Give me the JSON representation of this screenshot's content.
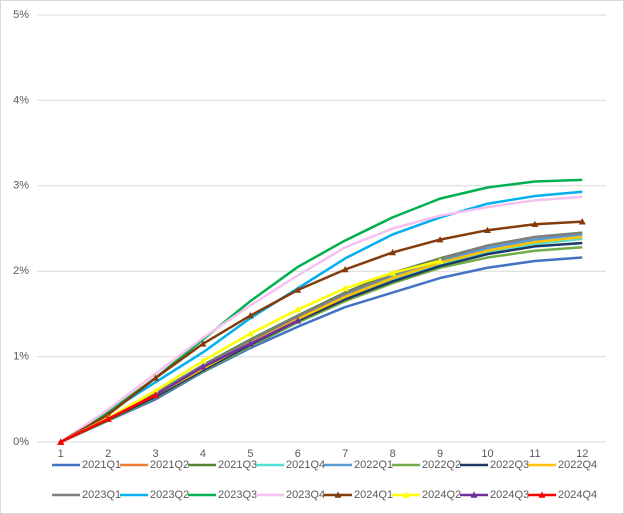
{
  "chart_data": {
    "type": "line",
    "categories": [
      "1",
      "2",
      "3",
      "4",
      "5",
      "6",
      "7",
      "8",
      "9",
      "10",
      "11",
      "12"
    ],
    "ylim": [
      0,
      5
    ],
    "yticks": [
      {
        "value": 0,
        "label": "0%"
      },
      {
        "value": 1,
        "label": "1%"
      },
      {
        "value": 2,
        "label": "2%"
      },
      {
        "value": 3,
        "label": "3%"
      },
      {
        "value": 4,
        "label": "4%"
      },
      {
        "value": 5,
        "label": "5%"
      }
    ],
    "series": [
      {
        "name": "2021Q1",
        "color": "#4472c4",
        "values": [
          0,
          0.25,
          0.5,
          0.82,
          1.1,
          1.35,
          1.58,
          1.75,
          1.92,
          2.04,
          2.12,
          2.16
        ]
      },
      {
        "name": "2021Q2",
        "color": "#ed7d31",
        "values": [
          0,
          0.27,
          0.55,
          0.85,
          1.15,
          1.42,
          1.68,
          1.9,
          2.08,
          2.22,
          2.32,
          2.38
        ]
      },
      {
        "name": "2021Q3",
        "color": "#548235",
        "values": [
          0,
          0.28,
          0.57,
          0.9,
          1.2,
          1.48,
          1.75,
          1.98,
          2.15,
          2.3,
          2.4,
          2.45
        ]
      },
      {
        "name": "2021Q4",
        "color": "#4fe0d4",
        "values": [
          0,
          0.27,
          0.55,
          0.86,
          1.15,
          1.43,
          1.68,
          1.9,
          2.08,
          2.22,
          2.32,
          2.38
        ]
      },
      {
        "name": "2022Q1",
        "color": "#5b9bd5",
        "values": [
          0,
          0.27,
          0.56,
          0.88,
          1.18,
          1.46,
          1.72,
          1.95,
          2.12,
          2.27,
          2.37,
          2.43
        ]
      },
      {
        "name": "2022Q2",
        "color": "#70ad47",
        "values": [
          0,
          0.25,
          0.52,
          0.83,
          1.12,
          1.4,
          1.65,
          1.86,
          2.04,
          2.16,
          2.24,
          2.28
        ]
      },
      {
        "name": "2022Q3",
        "color": "#1f3864",
        "values": [
          0,
          0.26,
          0.53,
          0.84,
          1.14,
          1.42,
          1.67,
          1.88,
          2.06,
          2.2,
          2.29,
          2.33
        ]
      },
      {
        "name": "2022Q4",
        "color": "#ffc000",
        "values": [
          0,
          0.27,
          0.55,
          0.86,
          1.16,
          1.44,
          1.7,
          1.92,
          2.1,
          2.24,
          2.34,
          2.4
        ]
      },
      {
        "name": "2023Q1",
        "color": "#7f7f7f",
        "values": [
          0,
          0.28,
          0.57,
          0.89,
          1.19,
          1.47,
          1.74,
          1.96,
          2.14,
          2.3,
          2.4,
          2.45
        ]
      },
      {
        "name": "2023Q2",
        "color": "#00b0f0",
        "values": [
          0,
          0.35,
          0.7,
          1.05,
          1.45,
          1.8,
          2.15,
          2.43,
          2.63,
          2.79,
          2.88,
          2.93
        ]
      },
      {
        "name": "2023Q3",
        "color": "#00b050",
        "values": [
          0,
          0.35,
          0.75,
          1.2,
          1.65,
          2.05,
          2.36,
          2.63,
          2.85,
          2.98,
          3.05,
          3.07
        ]
      },
      {
        "name": "2023Q4",
        "color": "#f6c0f0",
        "values": [
          0,
          0.38,
          0.8,
          1.22,
          1.6,
          1.95,
          2.28,
          2.5,
          2.65,
          2.75,
          2.83,
          2.87
        ]
      },
      {
        "name": "2024Q1",
        "color": "#843c0c",
        "marker": "triangle",
        "values": [
          0,
          0.32,
          0.75,
          1.15,
          1.48,
          1.78,
          2.02,
          2.22,
          2.37,
          2.48,
          2.55,
          2.58
        ]
      },
      {
        "name": "2024Q2",
        "color": "#ffff00",
        "marker": "triangle",
        "values": [
          0,
          0.28,
          0.6,
          0.95,
          1.27,
          1.55,
          1.8,
          1.98,
          2.12,
          null,
          null,
          null
        ]
      },
      {
        "name": "2024Q3",
        "color": "#7030a0",
        "marker": "triangle",
        "values": [
          0,
          0.27,
          0.55,
          0.88,
          1.15,
          1.42,
          null,
          null,
          null,
          null,
          null,
          null
        ]
      },
      {
        "name": "2024Q4",
        "color": "#ff0000",
        "marker": "triangle",
        "values": [
          0,
          0.27,
          0.55,
          null,
          null,
          null,
          null,
          null,
          null,
          null,
          null,
          null
        ]
      }
    ]
  }
}
